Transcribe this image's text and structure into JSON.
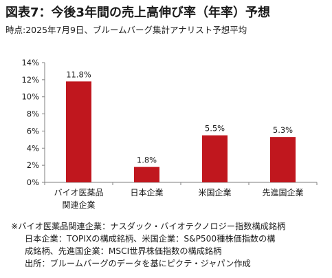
{
  "title": "図表7：今後3年間の売上高伸び率（年率）予想",
  "subtitle": "時点:2025年7月9日、ブルームバーグ集計アナリスト予想平均",
  "colors": {
    "bar": "#c0171e",
    "axis": "#7f7f7f",
    "text": "#1a1a1a"
  },
  "chart_data": {
    "type": "bar",
    "categories": [
      [
        "バイオ医薬品",
        "関連企業"
      ],
      [
        "日本企業"
      ],
      [
        "米国企業"
      ],
      [
        "先進国企業"
      ]
    ],
    "values": [
      11.8,
      1.8,
      5.5,
      5.3
    ],
    "value_labels": [
      "11.8%",
      "1.8%",
      "5.5%",
      "5.3%"
    ],
    "y_ticks": [
      "0%",
      "2%",
      "4%",
      "6%",
      "8%",
      "10%",
      "12%",
      "14%"
    ],
    "ylim": [
      0,
      14
    ],
    "grid": false
  },
  "notes": [
    "※バイオ医薬品関連企業：ナスダック・バイオテクノロジー指数構成銘柄",
    "日本企業：TOPIXの構成銘柄、米国企業：S&P500種株価指数の構",
    "成銘柄、先進国企業：MSCI世界株価指数の構成銘柄",
    "出所：ブルームバーグのデータを基にピクテ・ジャパン作成"
  ]
}
